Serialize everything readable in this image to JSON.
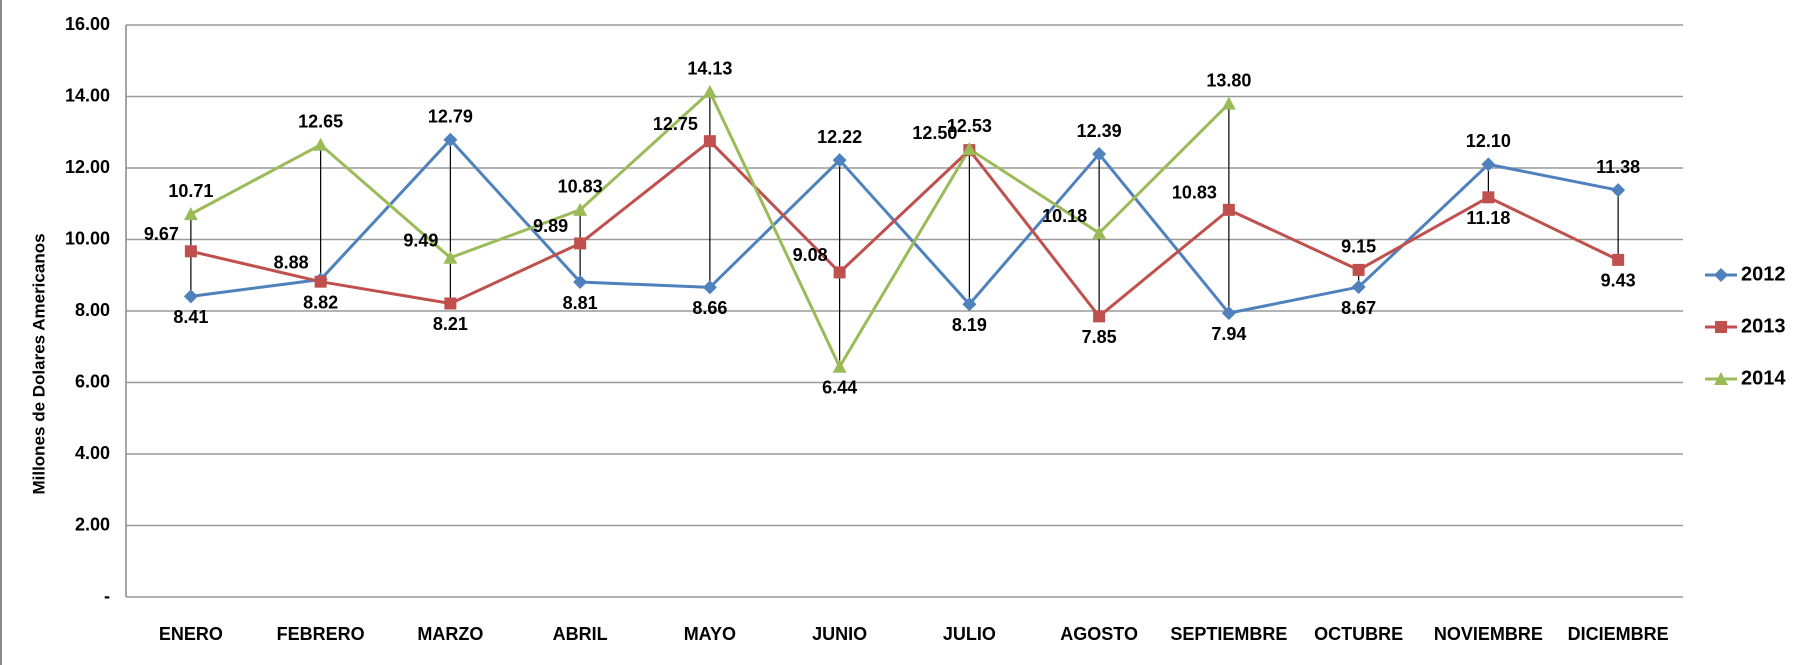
{
  "chart_data": {
    "type": "line",
    "y_label": "Millones de Dolares Americanos",
    "categories": [
      "ENERO",
      "FEBRERO",
      "MARZO",
      "ABRIL",
      "MAYO",
      "JUNIO",
      "JULIO",
      "AGOSTO",
      "SEPTIEMBRE",
      "OCTUBRE",
      "NOVIEMBRE",
      "DICIEMBRE"
    ],
    "series": [
      {
        "name": "2012",
        "color": "#4f81bd",
        "marker": "diamond",
        "values": [
          8.41,
          8.88,
          12.79,
          8.81,
          8.66,
          12.22,
          8.19,
          12.39,
          7.94,
          8.67,
          12.1,
          11.38
        ],
        "value_labels": [
          "8.41",
          "8.88",
          "12.79",
          "8.81",
          "8.66",
          "12.22",
          "8.19",
          "12.39",
          "7.94",
          "8.67",
          "12.10",
          "11.38"
        ]
      },
      {
        "name": "2013",
        "color": "#c0504d",
        "marker": "square",
        "values": [
          9.67,
          8.82,
          8.21,
          9.89,
          12.75,
          9.08,
          12.5,
          7.85,
          10.83,
          9.15,
          11.18,
          9.43
        ],
        "value_labels": [
          "9.67",
          "8.82",
          "8.21",
          "9.89",
          "12.75",
          "9.08",
          "12.50",
          "7.85",
          "10.83",
          "9.15",
          "11.18",
          "9.43"
        ]
      },
      {
        "name": "2014",
        "color": "#9bbb59",
        "marker": "triangle",
        "values": [
          10.71,
          12.65,
          9.49,
          10.83,
          14.13,
          6.44,
          12.53,
          10.18,
          13.8,
          null,
          null,
          null
        ],
        "value_labels": [
          "10.71",
          "12.65",
          "9.49",
          "10.83",
          "14.13",
          "6.44",
          "12.53",
          "10.18",
          "13.80",
          null,
          null,
          null
        ]
      }
    ],
    "ylim": [
      0,
      16
    ],
    "yticks": [
      {
        "value": 0,
        "label": "-"
      },
      {
        "value": 2,
        "label": "2.00"
      },
      {
        "value": 4,
        "label": "4.00"
      },
      {
        "value": 6,
        "label": "6.00"
      },
      {
        "value": 8,
        "label": "8.00"
      },
      {
        "value": 10,
        "label": "10.00"
      },
      {
        "value": 12,
        "label": "12.00"
      },
      {
        "value": 14,
        "label": "14.00"
      },
      {
        "value": 16,
        "label": "16.00"
      }
    ],
    "grid": true,
    "high_low_lines": true,
    "legend": "right"
  }
}
